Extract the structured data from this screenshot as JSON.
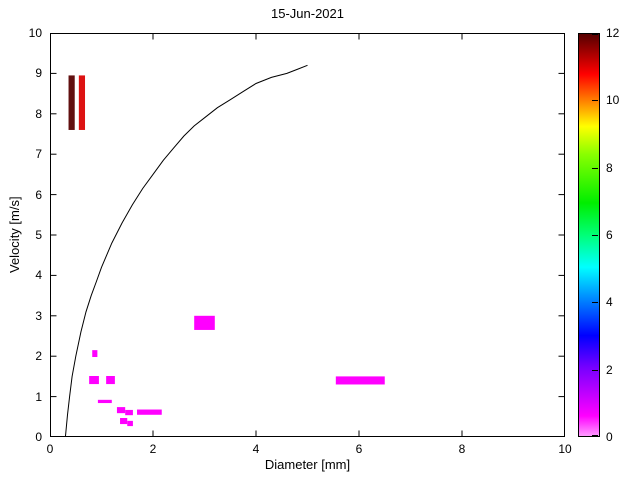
{
  "figure": {
    "background": "#ffffff"
  },
  "chart_data": {
    "type": "heatmap",
    "title": "15-Jun-2021",
    "xlabel": "Diameter [mm]",
    "ylabel": "Velocity [m/s]",
    "xlim": [
      0,
      10
    ],
    "ylim": [
      0,
      10
    ],
    "xticks": [
      0,
      2,
      4,
      6,
      8,
      10
    ],
    "yticks": [
      0,
      1,
      2,
      3,
      4,
      5,
      6,
      7,
      8,
      9,
      10
    ],
    "grid": false,
    "legend": "colorbar-right",
    "curve": {
      "name": "terminal-velocity-reference-curve",
      "color": "#000000",
      "points": [
        [
          0.3,
          0.0
        ],
        [
          0.34,
          0.55
        ],
        [
          0.38,
          1.0
        ],
        [
          0.43,
          1.5
        ],
        [
          0.5,
          2.0
        ],
        [
          0.6,
          2.6
        ],
        [
          0.7,
          3.1
        ],
        [
          0.8,
          3.5
        ],
        [
          0.9,
          3.85
        ],
        [
          1.0,
          4.2
        ],
        [
          1.2,
          4.8
        ],
        [
          1.4,
          5.3
        ],
        [
          1.6,
          5.75
        ],
        [
          1.8,
          6.15
        ],
        [
          2.0,
          6.5
        ],
        [
          2.2,
          6.85
        ],
        [
          2.4,
          7.15
        ],
        [
          2.6,
          7.45
        ],
        [
          2.8,
          7.7
        ],
        [
          3.0,
          7.9
        ],
        [
          3.25,
          8.15
        ],
        [
          3.5,
          8.35
        ],
        [
          3.75,
          8.55
        ],
        [
          4.0,
          8.75
        ],
        [
          4.3,
          8.9
        ],
        [
          4.6,
          9.0
        ],
        [
          4.8,
          9.1
        ],
        [
          5.0,
          9.2
        ]
      ]
    },
    "cells": [
      {
        "x0": 0.36,
        "x1": 0.48,
        "y0": 7.6,
        "y1": 8.95,
        "value": 12.0,
        "color": "#621010"
      },
      {
        "x0": 0.56,
        "x1": 0.68,
        "y0": 7.6,
        "y1": 8.95,
        "value": 10.5,
        "color": "#dd1212"
      },
      {
        "x0": 0.82,
        "x1": 0.92,
        "y0": 1.98,
        "y1": 2.15,
        "value": 0.5,
        "color": "#ff00ff"
      },
      {
        "x0": 0.76,
        "x1": 0.95,
        "y0": 1.31,
        "y1": 1.51,
        "value": 0.5,
        "color": "#ff00ff"
      },
      {
        "x0": 1.09,
        "x1": 1.26,
        "y0": 1.31,
        "y1": 1.51,
        "value": 0.5,
        "color": "#ff00ff"
      },
      {
        "x0": 0.93,
        "x1": 1.2,
        "y0": 0.84,
        "y1": 0.92,
        "value": 0.5,
        "color": "#ff00ff"
      },
      {
        "x0": 1.3,
        "x1": 1.46,
        "y0": 0.59,
        "y1": 0.74,
        "value": 0.5,
        "color": "#ff00ff"
      },
      {
        "x0": 1.46,
        "x1": 1.61,
        "y0": 0.54,
        "y1": 0.67,
        "value": 0.5,
        "color": "#ff00ff"
      },
      {
        "x0": 1.36,
        "x1": 1.5,
        "y0": 0.32,
        "y1": 0.47,
        "value": 0.5,
        "color": "#ff00ff"
      },
      {
        "x0": 1.5,
        "x1": 1.61,
        "y0": 0.27,
        "y1": 0.4,
        "value": 0.5,
        "color": "#ff00ff"
      },
      {
        "x0": 1.69,
        "x1": 2.17,
        "y0": 0.55,
        "y1": 0.68,
        "value": 0.5,
        "color": "#ff00ff"
      },
      {
        "x0": 2.8,
        "x1": 3.2,
        "y0": 2.65,
        "y1": 3.0,
        "value": 0.5,
        "color": "#ff00ff"
      },
      {
        "x0": 5.55,
        "x1": 6.5,
        "y0": 1.3,
        "y1": 1.5,
        "value": 0.5,
        "color": "#ff00ff"
      }
    ],
    "colorbar": {
      "min": 0,
      "max": 12,
      "ticks": [
        0,
        2,
        4,
        6,
        8,
        10,
        12
      ],
      "gradient_stops": [
        {
          "pos": 0.0,
          "color": "#ff9bff"
        },
        {
          "pos": 0.05,
          "color": "#ff00ff"
        },
        {
          "pos": 0.17,
          "color": "#7700ff"
        },
        {
          "pos": 0.25,
          "color": "#0000ff"
        },
        {
          "pos": 0.33,
          "color": "#0077ff"
        },
        {
          "pos": 0.42,
          "color": "#00ffff"
        },
        {
          "pos": 0.5,
          "color": "#00ff77"
        },
        {
          "pos": 0.58,
          "color": "#00ee00"
        },
        {
          "pos": 0.7,
          "color": "#88ff00"
        },
        {
          "pos": 0.77,
          "color": "#ffff00"
        },
        {
          "pos": 0.83,
          "color": "#ff8800"
        },
        {
          "pos": 0.9,
          "color": "#ff0000"
        },
        {
          "pos": 1.0,
          "color": "#550000"
        }
      ]
    }
  }
}
